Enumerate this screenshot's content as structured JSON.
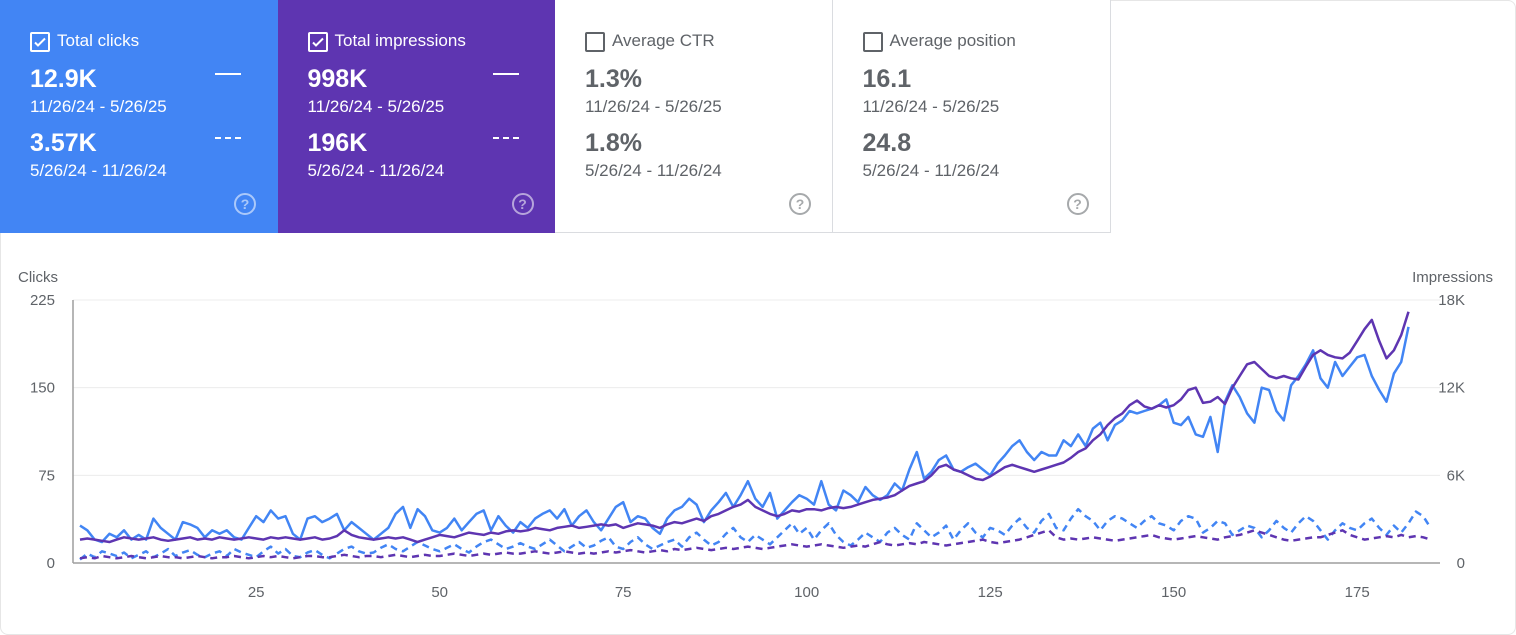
{
  "cards": [
    {
      "label": "Total clicks",
      "checked": true,
      "current_value": "12.9K",
      "current_range": "11/26/24 - 5/26/25",
      "previous_value": "3.57K",
      "previous_range": "5/26/24 - 11/26/24",
      "color": "#4285f4",
      "help_icon": "help-circle-icon"
    },
    {
      "label": "Total impressions",
      "checked": true,
      "current_value": "998K",
      "current_range": "11/26/24 - 5/26/25",
      "previous_value": "196K",
      "previous_range": "5/26/24 - 11/26/24",
      "color": "#5e35b1",
      "help_icon": "help-circle-icon"
    },
    {
      "label": "Average CTR",
      "checked": false,
      "current_value": "1.3%",
      "current_range": "11/26/24 - 5/26/25",
      "previous_value": "1.8%",
      "previous_range": "5/26/24 - 11/26/24",
      "help_icon": "help-circle-icon"
    },
    {
      "label": "Average position",
      "checked": false,
      "current_value": "16.1",
      "current_range": "11/26/24 - 5/26/25",
      "previous_value": "24.8",
      "previous_range": "5/26/24 - 11/26/24",
      "help_icon": "help-circle-icon"
    }
  ],
  "help_glyph": "?",
  "chart_data": {
    "type": "line",
    "ylabel_left": "Clicks",
    "ylabel_right": "Impressions",
    "ylim_left": [
      0,
      225
    ],
    "ylim_right": [
      0,
      18000
    ],
    "left_ticks": [
      "0",
      "75",
      "150",
      "225"
    ],
    "right_ticks": [
      "0",
      "6K",
      "12K",
      "18K"
    ],
    "x_ticks": [
      "25",
      "50",
      "75",
      "100",
      "125",
      "150",
      "175"
    ],
    "xlim": [
      1,
      185
    ],
    "grid": true,
    "series": [
      {
        "metric": "clicks",
        "period": "current",
        "axis": "left",
        "style": "solid",
        "color": "#4285f4",
        "x_start": 1,
        "values": [
          32,
          28,
          20,
          18,
          25,
          22,
          28,
          20,
          24,
          20,
          38,
          30,
          25,
          20,
          35,
          33,
          30,
          22,
          28,
          25,
          28,
          22,
          20,
          30,
          40,
          35,
          45,
          38,
          40,
          25,
          20,
          38,
          40,
          35,
          38,
          42,
          28,
          35,
          30,
          25,
          20,
          25,
          30,
          42,
          48,
          30,
          46,
          40,
          28,
          26,
          30,
          38,
          28,
          35,
          42,
          45,
          28,
          40,
          32,
          26,
          35,
          30,
          38,
          42,
          45,
          38,
          46,
          32,
          40,
          45,
          35,
          28,
          38,
          48,
          52,
          35,
          40,
          38,
          30,
          25,
          38,
          45,
          48,
          55,
          50,
          35,
          45,
          52,
          60,
          48,
          58,
          70,
          55,
          48,
          60,
          38,
          45,
          52,
          58,
          55,
          50,
          70,
          50,
          45,
          62,
          58,
          52,
          65,
          58,
          54,
          58,
          68,
          62,
          80,
          95,
          72,
          78,
          88,
          92,
          80,
          78,
          82,
          85,
          80,
          75,
          85,
          92,
          100,
          105,
          95,
          88,
          95,
          92,
          92,
          105,
          100,
          110,
          100,
          115,
          120,
          105,
          118,
          122,
          130,
          128,
          130,
          132,
          135,
          140,
          120,
          118,
          125,
          110,
          108,
          125,
          95,
          138,
          152,
          142,
          128,
          120,
          150,
          148,
          130,
          122,
          152,
          160,
          170,
          182,
          158,
          150,
          172,
          160,
          168,
          176,
          178,
          160,
          148,
          138,
          162,
          172,
          202
        ]
      },
      {
        "metric": "impressions",
        "period": "current",
        "axis": "right",
        "style": "solid",
        "color": "#5e35b1",
        "x_start": 1,
        "values": [
          1600,
          1680,
          1600,
          1520,
          1440,
          1600,
          1760,
          1680,
          1600,
          1680,
          1760,
          1600,
          1520,
          1600,
          1680,
          1760,
          1600,
          1680,
          1600,
          1760,
          1680,
          1600,
          1680,
          1760,
          1680,
          1600,
          1760,
          1680,
          1760,
          1680,
          1600,
          1680,
          1760,
          1600,
          1680,
          1840,
          2240,
          1920,
          1760,
          1680,
          1600,
          1680,
          1760,
          1680,
          1760,
          1600,
          1440,
          1600,
          1760,
          1920,
          1840,
          1760,
          1920,
          2080,
          2000,
          1920,
          2080,
          2000,
          2160,
          2240,
          2160,
          2240,
          2400,
          2320,
          2240,
          2400,
          2480,
          2560,
          2400,
          2480,
          2560,
          2640,
          2560,
          2640,
          2400,
          2560,
          2720,
          2640,
          2560,
          2400,
          2640,
          2800,
          2720,
          2880,
          3040,
          2880,
          3200,
          3360,
          3600,
          3840,
          4000,
          4320,
          3840,
          3600,
          3360,
          3200,
          3360,
          3600,
          3520,
          3680,
          3680,
          3600,
          3760,
          3840,
          3760,
          3840,
          4000,
          4160,
          4320,
          4400,
          4480,
          4640,
          4960,
          5280,
          5440,
          5600,
          6000,
          6560,
          6720,
          6400,
          6240,
          6000,
          5760,
          5680,
          5920,
          6240,
          6560,
          6720,
          6560,
          6400,
          6240,
          6400,
          6560,
          6720,
          6880,
          7200,
          7600,
          7840,
          8400,
          8800,
          9440,
          9920,
          10240,
          10800,
          11120,
          10720,
          10560,
          10800,
          10640,
          10800,
          11200,
          11840,
          12000,
          10960,
          11040,
          11360,
          10880,
          12000,
          12800,
          13600,
          13760,
          13280,
          12800,
          12640,
          12800,
          12640,
          12560,
          13440,
          14240,
          14560,
          14240,
          14080,
          14000,
          14400,
          15200,
          16000,
          16640,
          15200,
          14000,
          14560,
          15600,
          17200
        ]
      },
      {
        "metric": "clicks",
        "period": "previous",
        "axis": "left",
        "style": "dashed",
        "color": "#4285f4",
        "x_start": 1,
        "values": [
          3,
          8,
          5,
          10,
          8,
          6,
          9,
          4,
          7,
          10,
          5,
          8,
          12,
          6,
          9,
          11,
          7,
          5,
          8,
          10,
          6,
          12,
          9,
          7,
          5,
          10,
          14,
          8,
          12,
          6,
          5,
          9,
          11,
          7,
          4,
          8,
          12,
          14,
          10,
          8,
          9,
          13,
          16,
          12,
          10,
          14,
          18,
          15,
          12,
          10,
          13,
          16,
          12,
          9,
          14,
          18,
          20,
          16,
          12,
          14,
          17,
          14,
          12,
          16,
          20,
          15,
          10,
          14,
          18,
          13,
          15,
          19,
          22,
          14,
          12,
          18,
          22,
          16,
          12,
          15,
          18,
          20,
          14,
          22,
          26,
          20,
          15,
          18,
          25,
          30,
          22,
          18,
          24,
          20,
          16,
          22,
          28,
          34,
          25,
          30,
          20,
          28,
          34,
          24,
          18,
          15,
          20,
          26,
          22,
          18,
          26,
          30,
          24,
          20,
          34,
          28,
          22,
          26,
          32,
          20,
          28,
          34,
          26,
          22,
          30,
          28,
          24,
          32,
          38,
          30,
          26,
          36,
          42,
          30,
          28,
          38,
          46,
          40,
          36,
          28,
          36,
          40,
          38,
          34,
          30,
          36,
          40,
          34,
          32,
          28,
          36,
          40,
          38,
          26,
          30,
          36,
          34,
          24,
          28,
          32,
          30,
          22,
          28,
          36,
          30,
          26,
          34,
          40,
          36,
          28,
          20,
          28,
          34,
          30,
          28,
          34,
          38,
          30,
          24,
          32,
          26,
          34,
          44,
          40,
          30
        ]
      },
      {
        "metric": "impressions",
        "period": "previous",
        "axis": "right",
        "style": "dashed",
        "color": "#5e35b1",
        "x_start": 1,
        "values": [
          320,
          400,
          320,
          480,
          400,
          320,
          400,
          480,
          400,
          320,
          400,
          480,
          400,
          400,
          320,
          400,
          480,
          400,
          320,
          400,
          400,
          480,
          400,
          320,
          400,
          480,
          400,
          480,
          400,
          320,
          400,
          480,
          480,
          400,
          400,
          480,
          560,
          480,
          400,
          480,
          480,
          400,
          480,
          560,
          480,
          400,
          480,
          560,
          480,
          480,
          560,
          640,
          560,
          480,
          560,
          640,
          560,
          640,
          720,
          640,
          640,
          720,
          800,
          720,
          640,
          720,
          800,
          720,
          640,
          720,
          640,
          720,
          800,
          720,
          800,
          880,
          800,
          720,
          800,
          880,
          800,
          960,
          880,
          960,
          1040,
          960,
          880,
          960,
          1040,
          960,
          1040,
          1120,
          1040,
          960,
          1040,
          1120,
          1200,
          1280,
          1200,
          1120,
          1200,
          1280,
          1200,
          1120,
          1040,
          1120,
          1200,
          1120,
          1280,
          1440,
          1280,
          1200,
          1280,
          1360,
          1280,
          1440,
          1360,
          1280,
          1200,
          1280,
          1360,
          1440,
          1520,
          1600,
          1440,
          1360,
          1440,
          1520,
          1600,
          1760,
          1920,
          2080,
          2240,
          1760,
          1600,
          1680,
          1600,
          1680,
          1760,
          1680,
          1600,
          1520,
          1600,
          1680,
          1760,
          1840,
          1920,
          1760,
          1680,
          1600,
          1680,
          1760,
          1840,
          1760,
          1680,
          1600,
          1760,
          1840,
          1920,
          2080,
          2240,
          2080,
          1920,
          1760,
          1600,
          1520,
          1600,
          1680,
          1760,
          1760,
          1920,
          2080,
          2240,
          1920,
          1760,
          1600,
          1680,
          1760,
          1840,
          1760,
          1920,
          1760,
          1840,
          1760,
          1600
        ]
      }
    ]
  }
}
